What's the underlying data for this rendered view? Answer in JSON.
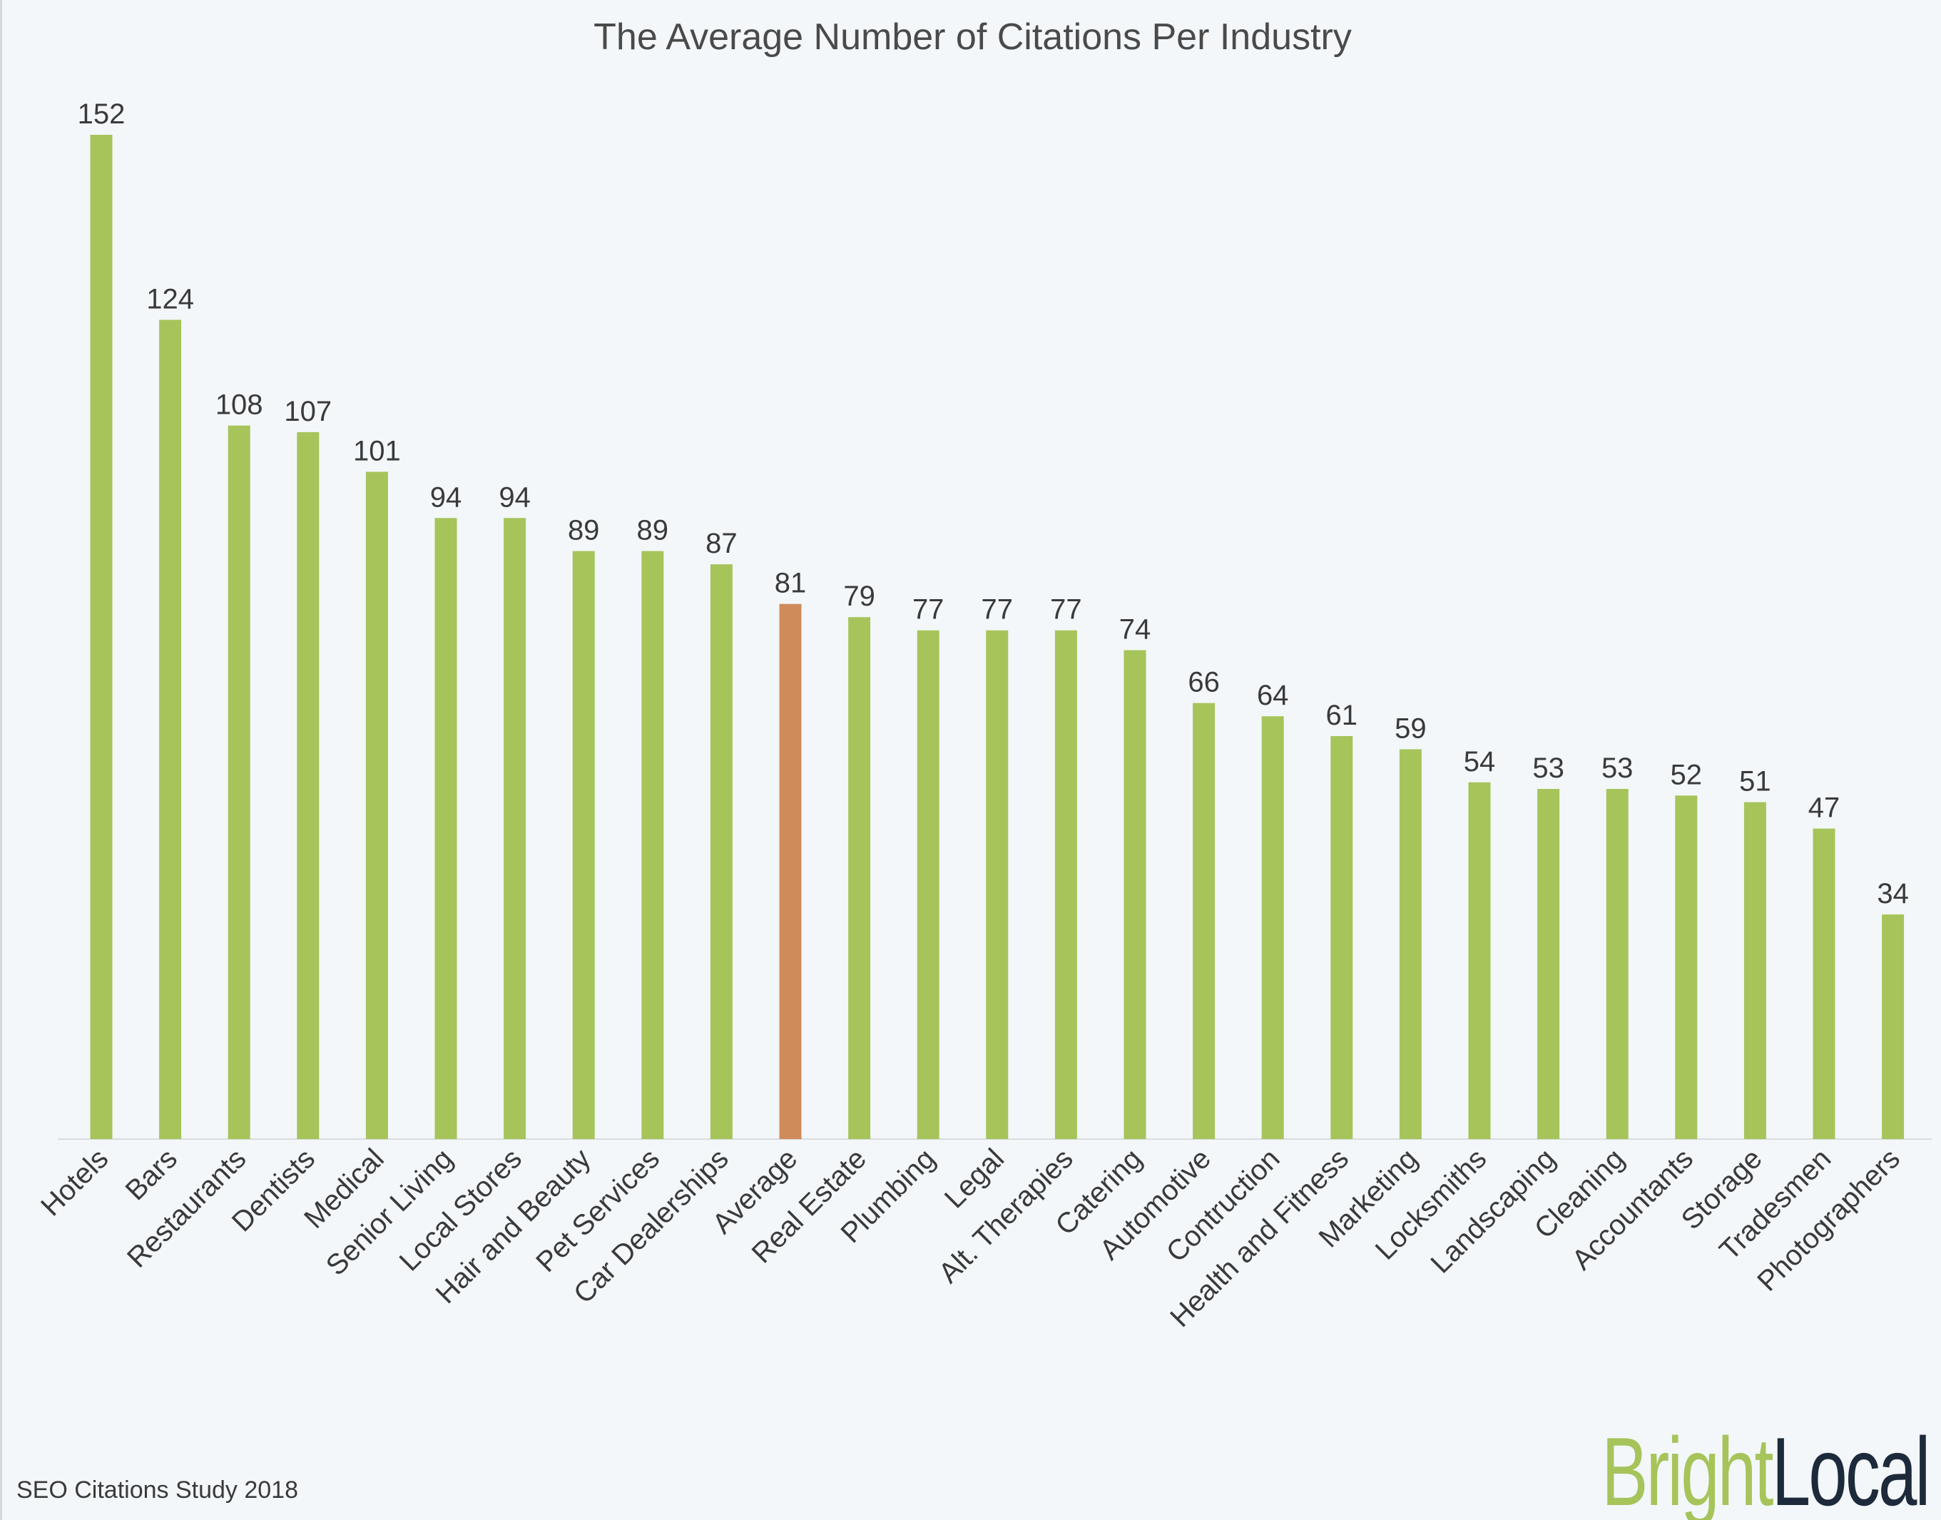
{
  "chart_data": {
    "type": "bar",
    "title": "The Average Number of Citations Per Industry",
    "xlabel": "",
    "ylabel": "",
    "ylim": [
      0,
      152
    ],
    "grid": false,
    "data_labels": true,
    "categories": [
      "Hotels",
      "Bars",
      "Restaurants",
      "Dentists",
      "Medical",
      "Senior Living",
      "Local Stores",
      "Hair and Beauty",
      "Pet Services",
      "Car Dealerships",
      "Average",
      "Real Estate",
      "Plumbing",
      "Legal",
      "Alt. Therapies",
      "Catering",
      "Automotive",
      "Contruction",
      "Health and Fitness",
      "Marketing",
      "Locksmiths",
      "Landscaping",
      "Cleaning",
      "Accountants",
      "Storage",
      "Tradesmen",
      "Photographers"
    ],
    "values": [
      152,
      124,
      108,
      107,
      101,
      94,
      94,
      89,
      89,
      87,
      81,
      79,
      77,
      77,
      77,
      74,
      66,
      64,
      61,
      59,
      54,
      53,
      53,
      52,
      51,
      47,
      34
    ],
    "highlight_category": "Average",
    "colors": {
      "bar": "#a6c45a",
      "highlight": "#d08b5b",
      "background": "#f3f7fa"
    }
  },
  "footer": "SEO Citations Study 2018",
  "logo": {
    "part1": "Bright",
    "part2": "Local",
    "color1": "#a6c45a",
    "color2": "#1d2a3b"
  }
}
